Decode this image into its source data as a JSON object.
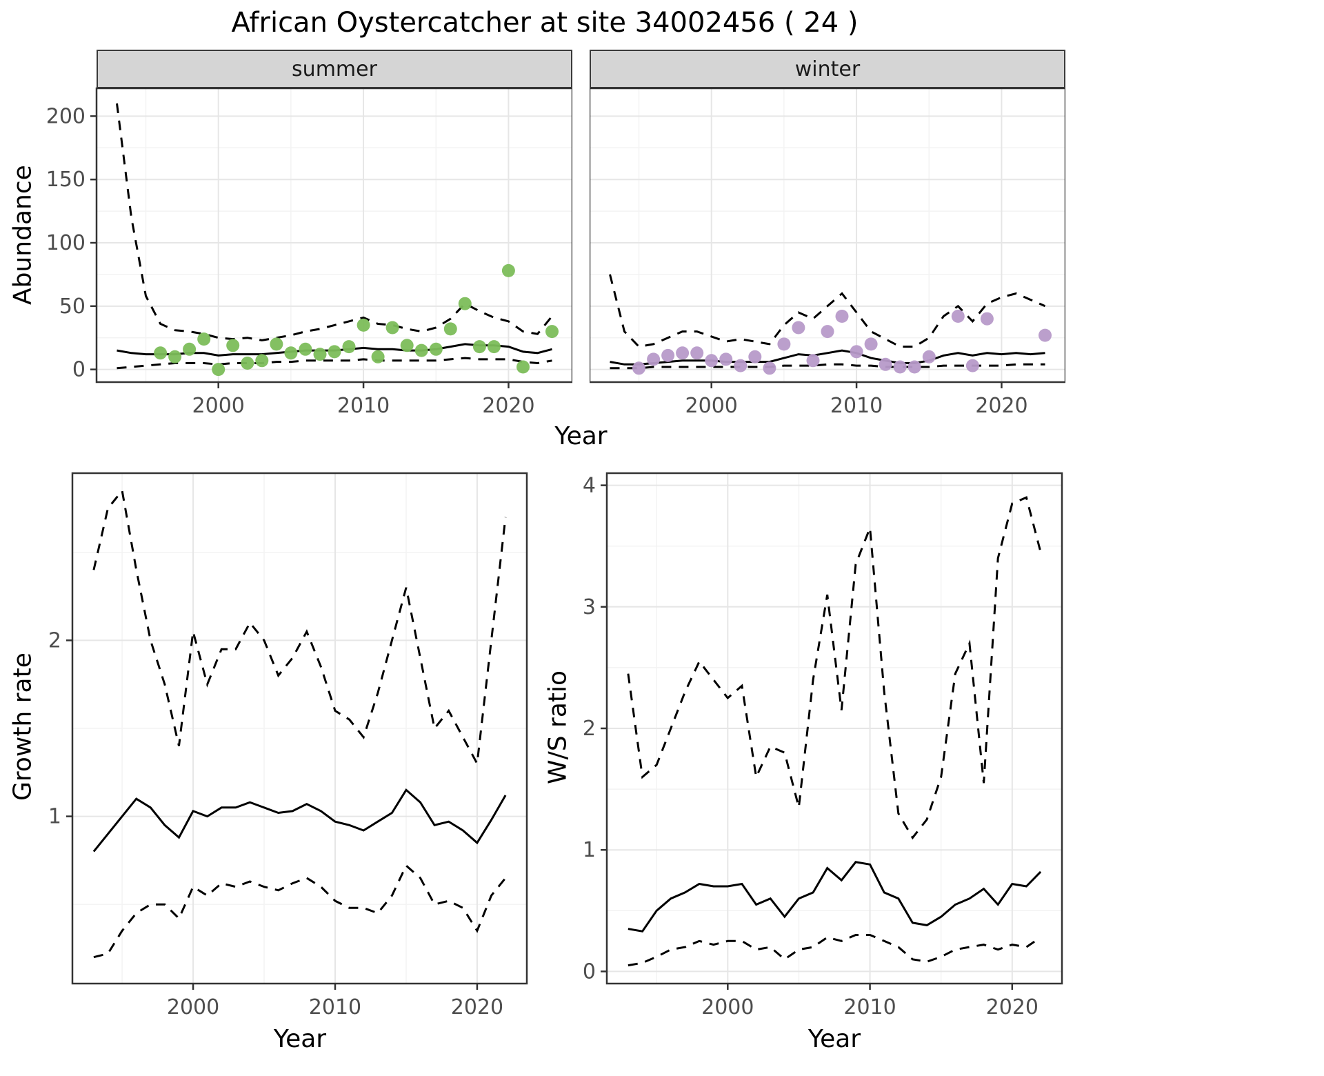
{
  "title": "African Oystercatcher at site 34002456 ( 24 )",
  "colors": {
    "summer_points": "#7cbd5a",
    "winter_points": "#b79ac9",
    "line": "#000000",
    "grid_major": "#e6e6e6",
    "grid_minor": "#f3f3f3",
    "strip_bg": "#d5d5d5",
    "panel_border": "#333333",
    "tick_text": "#4d4d4d"
  },
  "abundance": {
    "ylabel": "Abundance",
    "xlabel": "Year",
    "facets": [
      {
        "label": "summer"
      },
      {
        "label": "winter"
      }
    ]
  },
  "growth": {
    "ylabel": "Growth rate",
    "xlabel": "Year"
  },
  "ws": {
    "ylabel": "W/S ratio",
    "xlabel": "Year"
  },
  "chart_data": [
    {
      "id": "abundance-summer",
      "type": "line+scatter",
      "title": "summer",
      "xlabel": "Year",
      "ylabel": "Abundance",
      "xlim": [
        1991.6,
        2024.4
      ],
      "ylim": [
        -10,
        222
      ],
      "xticks": [
        2000,
        2010,
        2020
      ],
      "yticks": [
        0,
        50,
        100,
        150,
        200
      ],
      "xminor": [
        1995,
        2005,
        2015
      ],
      "yminor": [
        25,
        75,
        125,
        175
      ],
      "x": [
        1993,
        1994,
        1995,
        1996,
        1997,
        1998,
        1999,
        2000,
        2001,
        2002,
        2003,
        2004,
        2005,
        2006,
        2007,
        2008,
        2009,
        2010,
        2011,
        2012,
        2013,
        2014,
        2015,
        2016,
        2017,
        2018,
        2019,
        2020,
        2021,
        2022,
        2023
      ],
      "series": [
        {
          "name": "upper-95ci",
          "style": "dashed",
          "values": [
            210,
            120,
            58,
            36,
            31,
            30,
            28,
            25,
            24,
            25,
            23,
            25,
            27,
            30,
            32,
            35,
            38,
            41,
            36,
            35,
            32,
            30,
            33,
            40,
            52,
            46,
            41,
            38,
            30,
            28,
            42
          ]
        },
        {
          "name": "model-fit",
          "style": "solid",
          "values": [
            15,
            13,
            12,
            12,
            12,
            13,
            13,
            11,
            12,
            12,
            12,
            13,
            14,
            15,
            15,
            15,
            16,
            17,
            16,
            16,
            15,
            15,
            16,
            18,
            20,
            19,
            19,
            18,
            14,
            13,
            16
          ]
        },
        {
          "name": "lower-95ci",
          "style": "dashed",
          "values": [
            1,
            2,
            3,
            4,
            5,
            5,
            5,
            4,
            5,
            5,
            5,
            6,
            6,
            7,
            7,
            7,
            7,
            8,
            7,
            7,
            7,
            7,
            7,
            8,
            9,
            8,
            8,
            8,
            6,
            5,
            7
          ]
        }
      ],
      "points": {
        "name": "summer-observations",
        "color_key": "summer_points",
        "x": [
          1996,
          1997,
          1998,
          1999,
          2000,
          2001,
          2002,
          2003,
          2004,
          2005,
          2006,
          2007,
          2008,
          2009,
          2010,
          2011,
          2012,
          2013,
          2014,
          2015,
          2016,
          2017,
          2018,
          2019,
          2020,
          2021,
          2023
        ],
        "y": [
          13,
          10,
          16,
          24,
          0,
          19,
          5,
          7,
          20,
          13,
          16,
          12,
          14,
          18,
          35,
          10,
          33,
          19,
          15,
          16,
          32,
          52,
          18,
          18,
          78,
          2,
          30
        ]
      }
    },
    {
      "id": "abundance-winter",
      "type": "line+scatter",
      "title": "winter",
      "xlabel": "Year",
      "ylabel": "Abundance",
      "xlim": [
        1991.6,
        2024.4
      ],
      "ylim": [
        -10,
        222
      ],
      "xticks": [
        2000,
        2010,
        2020
      ],
      "yticks": [
        0,
        50,
        100,
        150,
        200
      ],
      "xminor": [
        1995,
        2005,
        2015
      ],
      "yminor": [
        25,
        75,
        125,
        175
      ],
      "x": [
        1993,
        1994,
        1995,
        1996,
        1997,
        1998,
        1999,
        2000,
        2001,
        2002,
        2003,
        2004,
        2005,
        2006,
        2007,
        2008,
        2009,
        2010,
        2011,
        2012,
        2013,
        2014,
        2015,
        2016,
        2017,
        2018,
        2019,
        2020,
        2021,
        2022,
        2023
      ],
      "series": [
        {
          "name": "upper-95ci",
          "style": "dashed",
          "values": [
            75,
            30,
            18,
            20,
            25,
            30,
            30,
            26,
            22,
            24,
            22,
            20,
            35,
            45,
            40,
            50,
            60,
            45,
            30,
            24,
            18,
            18,
            25,
            42,
            50,
            38,
            52,
            57,
            60,
            55,
            50
          ]
        },
        {
          "name": "model-fit",
          "style": "solid",
          "values": [
            6,
            4,
            4,
            5,
            6,
            7,
            7,
            7,
            6,
            6,
            6,
            6,
            9,
            12,
            11,
            13,
            15,
            13,
            9,
            7,
            5,
            5,
            7,
            11,
            13,
            11,
            13,
            12,
            13,
            12,
            13
          ]
        },
        {
          "name": "lower-95ci",
          "style": "dashed",
          "values": [
            1,
            1,
            1,
            2,
            2,
            2,
            2,
            2,
            2,
            2,
            2,
            2,
            3,
            3,
            3,
            4,
            4,
            3,
            3,
            2,
            2,
            2,
            2,
            3,
            3,
            3,
            3,
            3,
            4,
            4,
            4
          ]
        }
      ],
      "points": {
        "name": "winter-observations",
        "color_key": "winter_points",
        "x": [
          1995,
          1996,
          1997,
          1998,
          1999,
          2000,
          2001,
          2002,
          2003,
          2004,
          2005,
          2006,
          2007,
          2008,
          2009,
          2010,
          2011,
          2012,
          2013,
          2014,
          2015,
          2017,
          2018,
          2019,
          2023
        ],
        "y": [
          1,
          8,
          11,
          13,
          13,
          7,
          8,
          3,
          10,
          1,
          20,
          33,
          7,
          30,
          42,
          14,
          20,
          4,
          2,
          2,
          10,
          42,
          3,
          40,
          27
        ]
      }
    },
    {
      "id": "growth-rate",
      "type": "line",
      "title": "Growth rate",
      "xlabel": "Year",
      "ylabel": "Growth rate",
      "xlim": [
        1991.5,
        2023.5
      ],
      "ylim": [
        0.05,
        2.95
      ],
      "xticks": [
        2000,
        2010,
        2020
      ],
      "yticks": [
        1,
        2
      ],
      "xminor": [
        1995,
        2005,
        2015
      ],
      "yminor": [
        0.5,
        1.5,
        2.5
      ],
      "x": [
        1993,
        1994,
        1995,
        1996,
        1997,
        1998,
        1999,
        2000,
        2001,
        2002,
        2003,
        2004,
        2005,
        2006,
        2007,
        2008,
        2009,
        2010,
        2011,
        2012,
        2013,
        2014,
        2015,
        2016,
        2017,
        2018,
        2019,
        2020,
        2021,
        2022
      ],
      "series": [
        {
          "name": "upper-95ci",
          "style": "dashed",
          "values": [
            2.4,
            2.75,
            2.85,
            2.4,
            2.0,
            1.75,
            1.4,
            2.05,
            1.75,
            1.95,
            1.95,
            2.1,
            2.0,
            1.8,
            1.9,
            2.05,
            1.85,
            1.6,
            1.55,
            1.45,
            1.7,
            2.0,
            2.3,
            1.9,
            1.5,
            1.6,
            1.45,
            1.3,
            2.0,
            2.7
          ]
        },
        {
          "name": "model-fit",
          "style": "solid",
          "values": [
            0.8,
            0.9,
            1.0,
            1.1,
            1.05,
            0.95,
            0.88,
            1.03,
            1.0,
            1.05,
            1.05,
            1.08,
            1.05,
            1.02,
            1.03,
            1.07,
            1.03,
            0.97,
            0.95,
            0.92,
            0.97,
            1.02,
            1.15,
            1.08,
            0.95,
            0.97,
            0.92,
            0.85,
            0.98,
            1.12
          ]
        },
        {
          "name": "lower-95ci",
          "style": "dashed",
          "values": [
            0.2,
            0.22,
            0.35,
            0.45,
            0.5,
            0.5,
            0.42,
            0.6,
            0.55,
            0.62,
            0.6,
            0.63,
            0.6,
            0.58,
            0.62,
            0.65,
            0.6,
            0.52,
            0.48,
            0.48,
            0.45,
            0.55,
            0.72,
            0.65,
            0.5,
            0.52,
            0.48,
            0.35,
            0.55,
            0.65
          ]
        }
      ]
    },
    {
      "id": "ws-ratio",
      "type": "line",
      "title": "W/S ratio",
      "xlabel": "Year",
      "ylabel": "W/S ratio",
      "xlim": [
        1991.5,
        2023.5
      ],
      "ylim": [
        -0.1,
        4.1
      ],
      "xticks": [
        2000,
        2010,
        2020
      ],
      "yticks": [
        0,
        1,
        2,
        3,
        4
      ],
      "xminor": [
        1995,
        2005,
        2015
      ],
      "yminor": [
        0.5,
        1.5,
        2.5,
        3.5
      ],
      "x": [
        1993,
        1994,
        1995,
        1996,
        1997,
        1998,
        1999,
        2000,
        2001,
        2002,
        2003,
        2004,
        2005,
        2006,
        2007,
        2008,
        2009,
        2010,
        2011,
        2012,
        2013,
        2014,
        2015,
        2016,
        2017,
        2018,
        2019,
        2020,
        2021,
        2022
      ],
      "series": [
        {
          "name": "upper-95ci",
          "style": "dashed",
          "values": [
            2.45,
            1.6,
            1.7,
            2.0,
            2.3,
            2.55,
            2.4,
            2.25,
            2.35,
            1.6,
            1.85,
            1.8,
            1.35,
            2.4,
            3.1,
            2.15,
            3.35,
            3.65,
            2.3,
            1.3,
            1.1,
            1.25,
            1.6,
            2.45,
            2.7,
            1.55,
            3.4,
            3.85,
            3.9,
            3.45
          ]
        },
        {
          "name": "model-fit",
          "style": "solid",
          "values": [
            0.35,
            0.33,
            0.5,
            0.6,
            0.65,
            0.72,
            0.7,
            0.7,
            0.72,
            0.55,
            0.6,
            0.45,
            0.6,
            0.65,
            0.85,
            0.75,
            0.9,
            0.88,
            0.65,
            0.6,
            0.4,
            0.38,
            0.45,
            0.55,
            0.6,
            0.68,
            0.55,
            0.72,
            0.7,
            0.82
          ]
        },
        {
          "name": "lower-95ci",
          "style": "dashed",
          "values": [
            0.05,
            0.07,
            0.12,
            0.18,
            0.2,
            0.25,
            0.22,
            0.25,
            0.25,
            0.18,
            0.2,
            0.1,
            0.18,
            0.2,
            0.28,
            0.25,
            0.3,
            0.3,
            0.25,
            0.2,
            0.1,
            0.08,
            0.12,
            0.18,
            0.2,
            0.22,
            0.18,
            0.22,
            0.2,
            0.28
          ]
        }
      ]
    }
  ]
}
